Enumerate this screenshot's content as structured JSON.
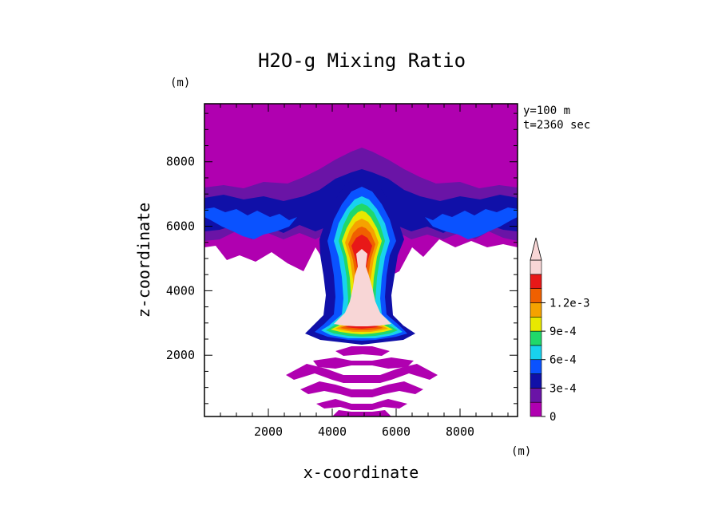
{
  "chart_data": {
    "type": "contour",
    "title": "H2O-g Mixing Ratio",
    "xlabel": "x-coordinate",
    "ylabel": "z-coordinate",
    "x_unit": "(m)",
    "y_unit": "(m)",
    "annotation_lines": [
      "y=100 m",
      "t=2360 sec"
    ],
    "xlim": [
      0,
      9800
    ],
    "ylim": [
      100,
      9800
    ],
    "x_ticks": [
      2000,
      4000,
      6000,
      8000
    ],
    "y_ticks": [
      2000,
      4000,
      6000,
      8000
    ],
    "x_tick_labels": [
      "2000",
      "4000",
      "6000",
      "8000"
    ],
    "y_tick_labels": [
      "2000",
      "4000",
      "6000",
      "8000"
    ],
    "colorbar": {
      "levels": [
        0,
        0.00015,
        0.0003,
        0.00045,
        0.0006,
        0.00075,
        0.0009,
        0.00105,
        0.0012
      ],
      "labels": [
        "0",
        "3e-4",
        "6e-4",
        "9e-4",
        "1.2e-3"
      ],
      "label_values": [
        0,
        0.0003,
        0.0006,
        0.0009,
        0.0012
      ],
      "colors": [
        "#b000b0",
        "#6a14a6",
        "#1010a8",
        "#0a52ff",
        "#18d2ee",
        "#20d86a",
        "#e8e800",
        "#f5a200",
        "#f06000",
        "#e81818",
        "#f8d6d6"
      ]
    },
    "background_color": "#ffffff"
  }
}
